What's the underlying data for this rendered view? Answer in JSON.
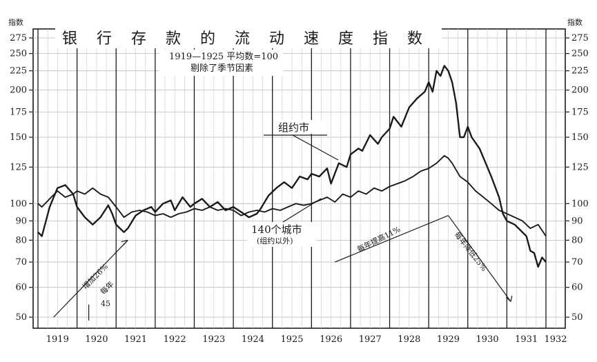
{
  "chart_data": {
    "type": "line",
    "title": "银行存款的流动速度指数",
    "subtitle_lines": [
      "1919—1925 平均数=100",
      "剔除了季节因素"
    ],
    "y_unit_label": "指数",
    "y_scale": "log",
    "ylim": [
      45,
      290
    ],
    "y_ticks": [
      50,
      60,
      70,
      80,
      90,
      100,
      125,
      150,
      175,
      200,
      225,
      250,
      275
    ],
    "y_tick_labels": [
      "50",
      "60",
      "70",
      "80",
      "90",
      "100",
      "125",
      "150",
      "175",
      "200",
      "225",
      "250",
      "275"
    ],
    "x_ticks": [
      1919,
      1920,
      1921,
      1922,
      1923,
      1924,
      1925,
      1926,
      1927,
      1928,
      1929,
      1930,
      1931,
      1932
    ],
    "x_tick_labels": [
      "1919",
      "1920",
      "1921",
      "1922",
      "1923",
      "1924",
      "1925",
      "1926",
      "1927",
      "1928",
      "1929",
      "1930",
      "1931",
      "1932"
    ],
    "xlim": [
      1919,
      1932.3
    ],
    "grid": true,
    "series": [
      {
        "name": "组约市",
        "color": "#1a1a1a",
        "points": [
          [
            1919.0,
            84
          ],
          [
            1919.1,
            82
          ],
          [
            1919.3,
            98
          ],
          [
            1919.5,
            110
          ],
          [
            1919.7,
            112
          ],
          [
            1919.9,
            106
          ],
          [
            1920.0,
            98
          ],
          [
            1920.2,
            92
          ],
          [
            1920.4,
            88
          ],
          [
            1920.6,
            92
          ],
          [
            1920.8,
            99
          ],
          [
            1920.9,
            94
          ],
          [
            1921.0,
            88
          ],
          [
            1921.2,
            84
          ],
          [
            1921.3,
            86
          ],
          [
            1921.5,
            93
          ],
          [
            1921.7,
            96
          ],
          [
            1921.9,
            98
          ],
          [
            1922.0,
            95
          ],
          [
            1922.2,
            100
          ],
          [
            1922.4,
            102
          ],
          [
            1922.5,
            96
          ],
          [
            1922.7,
            104
          ],
          [
            1922.9,
            98
          ],
          [
            1923.0,
            100
          ],
          [
            1923.2,
            103
          ],
          [
            1923.4,
            98
          ],
          [
            1923.6,
            101
          ],
          [
            1923.8,
            96
          ],
          [
            1924.0,
            98
          ],
          [
            1924.2,
            95
          ],
          [
            1924.4,
            92
          ],
          [
            1924.6,
            94
          ],
          [
            1924.7,
            97
          ],
          [
            1924.9,
            105
          ],
          [
            1925.1,
            110
          ],
          [
            1925.3,
            114
          ],
          [
            1925.5,
            110
          ],
          [
            1925.7,
            118
          ],
          [
            1925.9,
            116
          ],
          [
            1926.0,
            120
          ],
          [
            1926.2,
            118
          ],
          [
            1926.4,
            124
          ],
          [
            1926.5,
            113
          ],
          [
            1926.7,
            128
          ],
          [
            1926.9,
            125
          ],
          [
            1927.0,
            135
          ],
          [
            1927.2,
            140
          ],
          [
            1927.3,
            138
          ],
          [
            1927.5,
            152
          ],
          [
            1927.7,
            144
          ],
          [
            1927.8,
            150
          ],
          [
            1928.0,
            158
          ],
          [
            1928.1,
            170
          ],
          [
            1928.3,
            160
          ],
          [
            1928.5,
            180
          ],
          [
            1928.7,
            190
          ],
          [
            1928.9,
            198
          ],
          [
            1929.0,
            210
          ],
          [
            1929.1,
            198
          ],
          [
            1929.2,
            225
          ],
          [
            1929.3,
            218
          ],
          [
            1929.4,
            232
          ],
          [
            1929.5,
            225
          ],
          [
            1929.6,
            210
          ],
          [
            1929.7,
            185
          ],
          [
            1929.8,
            150
          ],
          [
            1929.9,
            150
          ],
          [
            1930.0,
            160
          ],
          [
            1930.1,
            150
          ],
          [
            1930.3,
            140
          ],
          [
            1930.5,
            125
          ],
          [
            1930.6,
            118
          ],
          [
            1930.8,
            104
          ],
          [
            1930.9,
            94
          ],
          [
            1931.0,
            90
          ],
          [
            1931.2,
            88
          ],
          [
            1931.3,
            86
          ],
          [
            1931.5,
            82
          ],
          [
            1931.6,
            75
          ],
          [
            1931.7,
            74
          ],
          [
            1931.8,
            68
          ],
          [
            1931.9,
            72
          ],
          [
            1932.0,
            70
          ]
        ]
      },
      {
        "name": "140个城市",
        "color": "#1a1a1a",
        "points": [
          [
            1919.0,
            100
          ],
          [
            1919.1,
            98
          ],
          [
            1919.3,
            103
          ],
          [
            1919.5,
            108
          ],
          [
            1919.7,
            104
          ],
          [
            1919.9,
            106
          ],
          [
            1920.0,
            108
          ],
          [
            1920.2,
            106
          ],
          [
            1920.4,
            110
          ],
          [
            1920.6,
            106
          ],
          [
            1920.8,
            104
          ],
          [
            1921.0,
            98
          ],
          [
            1921.2,
            92
          ],
          [
            1921.4,
            95
          ],
          [
            1921.6,
            96
          ],
          [
            1921.8,
            95
          ],
          [
            1922.0,
            93
          ],
          [
            1922.2,
            94
          ],
          [
            1922.4,
            92
          ],
          [
            1922.6,
            94
          ],
          [
            1922.8,
            95
          ],
          [
            1923.0,
            97
          ],
          [
            1923.2,
            96
          ],
          [
            1923.4,
            98
          ],
          [
            1923.6,
            96
          ],
          [
            1923.8,
            97
          ],
          [
            1924.0,
            96
          ],
          [
            1924.2,
            93
          ],
          [
            1924.4,
            95
          ],
          [
            1924.6,
            96
          ],
          [
            1924.8,
            95
          ],
          [
            1925.0,
            97
          ],
          [
            1925.2,
            96
          ],
          [
            1925.4,
            98
          ],
          [
            1925.6,
            100
          ],
          [
            1925.8,
            99
          ],
          [
            1926.0,
            100
          ],
          [
            1926.2,
            102
          ],
          [
            1926.4,
            104
          ],
          [
            1926.6,
            101
          ],
          [
            1926.8,
            106
          ],
          [
            1927.0,
            104
          ],
          [
            1927.2,
            108
          ],
          [
            1927.4,
            106
          ],
          [
            1927.6,
            110
          ],
          [
            1927.8,
            108
          ],
          [
            1928.0,
            111
          ],
          [
            1928.2,
            113
          ],
          [
            1928.4,
            115
          ],
          [
            1928.6,
            118
          ],
          [
            1928.8,
            122
          ],
          [
            1929.0,
            124
          ],
          [
            1929.2,
            128
          ],
          [
            1929.4,
            134
          ],
          [
            1929.5,
            132
          ],
          [
            1929.6,
            128
          ],
          [
            1929.8,
            118
          ],
          [
            1930.0,
            114
          ],
          [
            1930.2,
            108
          ],
          [
            1930.4,
            104
          ],
          [
            1930.6,
            100
          ],
          [
            1930.8,
            96
          ],
          [
            1931.0,
            94
          ],
          [
            1931.2,
            92
          ],
          [
            1931.4,
            90
          ],
          [
            1931.6,
            86
          ],
          [
            1931.8,
            88
          ],
          [
            1932.0,
            82
          ]
        ]
      }
    ],
    "series_labels": {
      "nyc": "组约市",
      "cities": "140个城市",
      "cities_note": "(组约以外)"
    },
    "annotations": {
      "increase_rate": "增加26%",
      "per_year": "每年",
      "angle": "45",
      "rise_per_year": "每年提高11%",
      "fall_per_year": "每年降低25%"
    }
  }
}
